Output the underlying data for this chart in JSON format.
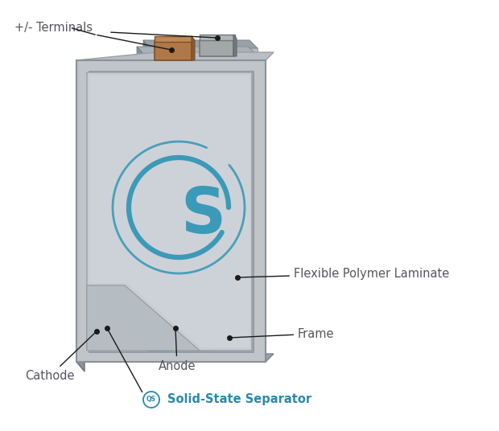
{
  "background_color": "#ffffff",
  "labels": {
    "terminals": "+/- Terminals",
    "flexible_laminate": "Flexible Polymer Laminate",
    "frame": "Frame",
    "anode": "Anode",
    "cathode": "Cathode",
    "separator": "Solid-State Separator",
    "qs_logo": "QS"
  },
  "colors": {
    "frame_front": "#c8cdd2",
    "frame_side": "#8a9098",
    "frame_top": "#b0b8be",
    "frame_inner": "#a8b0b8",
    "frame_inner_panel": "#d0d8de",
    "laminate_face": "#c8cdd2",
    "laminate_fold": "#b0b8be",
    "cathode_color": "#d4bea0",
    "anode_teal": "#3a8fa8",
    "separator_cream": "#ddd8b0",
    "terminal_brown": "#b07848",
    "terminal_gray": "#a0a8a8",
    "qs_color": "#3a9ab8",
    "annotation_color": "#1a1a1a",
    "text_color": "#555560",
    "separator_text_color": "#2a8aaa"
  },
  "annotation_fontsize": 10.5,
  "label_fontsize": 10.5
}
